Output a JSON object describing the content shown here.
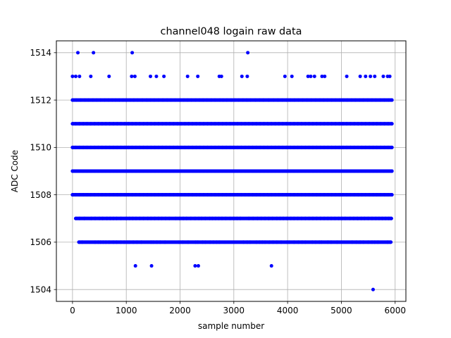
{
  "chart_data": {
    "type": "scatter",
    "title": "channel048 logain raw data",
    "xlabel": "sample number",
    "ylabel": "ADC Code",
    "xlim": [
      -300,
      6200
    ],
    "ylim": [
      1503.5,
      1514.5
    ],
    "x_ticks": [
      0,
      1000,
      2000,
      3000,
      4000,
      5000,
      6000
    ],
    "x_tick_labels": [
      "0",
      "1000",
      "2000",
      "3000",
      "4000",
      "5000",
      "6000"
    ],
    "y_ticks": [
      1504,
      1506,
      1508,
      1510,
      1512,
      1514
    ],
    "y_tick_labels": [
      "1504",
      "1506",
      "1508",
      "1510",
      "1512",
      "1514"
    ],
    "grid": true,
    "legend": "none",
    "marker_color": "#0000ff",
    "x_range_of_samples": [
      0,
      5940
    ],
    "series": [
      {
        "levels": [
          {
            "y": 1504,
            "x": [
              5590
            ]
          },
          {
            "y": 1505,
            "x": [
              1170,
              1470,
              2280,
              2340,
              3700
            ]
          },
          {
            "y": 1506,
            "x": [
              120,
              180,
              420,
              480,
              520,
              570,
              620,
              680,
              760,
              820,
              900,
              960,
              1030,
              1060,
              1130,
              1200,
              1280,
              1460,
              1500,
              1570,
              1630,
              1720,
              1980,
              2050,
              2150,
              2290,
              2330,
              2420,
              2470,
              2560,
              2620,
              2680,
              2730,
              3180,
              3250,
              3300,
              3420,
              3480,
              3530,
              3580,
              3660,
              3730,
              3800,
              3880,
              3990,
              4030,
              4120,
              4200,
              4270,
              4330,
              4460,
              4520,
              4590,
              4630,
              4750,
              4810,
              4920,
              5200,
              5280,
              5350,
              5410,
              5500,
              5570,
              5620,
              5680,
              5860,
              5920
            ]
          },
          {
            "y": 1507,
            "x": [
              60,
              130,
              220,
              350,
              420,
              500,
              560,
              640,
              700,
              760,
              820,
              900,
              1000,
              1060,
              1120,
              1180,
              1250,
              1320,
              1400,
              1460,
              1530,
              1600,
              1660,
              1730,
              1800,
              1920,
              1990,
              2060,
              2120,
              2200,
              2280,
              2350,
              2400,
              2470,
              2550,
              2600,
              2660,
              2720,
              2780,
              2850,
              2930,
              3000,
              3060,
              3120,
              3280,
              3360,
              3440,
              3510,
              3580,
              3650,
              3720,
              3800,
              3860,
              3920,
              3990,
              4060,
              4120,
              4190,
              4260,
              4330,
              4400,
              4470,
              4540,
              4610,
              4680,
              4750,
              4810,
              4880,
              4950,
              5010,
              5070,
              5160,
              5230,
              5300,
              5370,
              5430,
              5500,
              5570,
              5640,
              5700,
              5760,
              5820,
              5880,
              5930
            ]
          },
          {
            "y": 1508,
            "x": [
              0,
              60,
              130,
              200,
              270,
              340,
              410,
              480,
              550,
              620,
              690,
              760,
              830,
              900,
              970,
              1040,
              1110,
              1180,
              1250,
              1320,
              1390,
              1460,
              1530,
              1600,
              1670,
              1740,
              1810,
              1880,
              1950,
              2020,
              2090,
              2160,
              2230,
              2300,
              2370,
              2440,
              2510,
              2580,
              2650,
              2720,
              2790,
              2860,
              2930,
              3000,
              3070,
              3140,
              3210,
              3280,
              3350,
              3420,
              3490,
              3560,
              3630,
              3700,
              3770,
              3840,
              3910,
              3980,
              4050,
              4120,
              4190,
              4260,
              4330,
              4400,
              4470,
              4540,
              4610,
              4680,
              4750,
              4820,
              4890,
              4960,
              5030,
              5100,
              5170,
              5240,
              5310,
              5380,
              5450,
              5520,
              5590,
              5660,
              5730,
              5800,
              5870,
              5940
            ]
          },
          {
            "y": 1509,
            "x": [
              0,
              60,
              130,
              200,
              270,
              340,
              410,
              480,
              550,
              620,
              690,
              760,
              830,
              900,
              970,
              1040,
              1110,
              1180,
              1250,
              1320,
              1390,
              1460,
              1530,
              1600,
              1670,
              1740,
              1810,
              1880,
              1950,
              2020,
              2090,
              2160,
              2230,
              2300,
              2370,
              2440,
              2510,
              2580,
              2650,
              2720,
              2790,
              2860,
              2930,
              3000,
              3070,
              3140,
              3210,
              3280,
              3350,
              3420,
              3490,
              3560,
              3630,
              3700,
              3770,
              3840,
              3910,
              3980,
              4050,
              4120,
              4190,
              4260,
              4330,
              4400,
              4470,
              4540,
              4610,
              4680,
              4750,
              4820,
              4890,
              4960,
              5030,
              5100,
              5170,
              5240,
              5310,
              5380,
              5450,
              5520,
              5590,
              5660,
              5730,
              5800,
              5870,
              5940
            ]
          },
          {
            "y": 1510,
            "x": [
              0,
              60,
              130,
              200,
              270,
              340,
              410,
              480,
              550,
              620,
              690,
              760,
              830,
              900,
              970,
              1040,
              1110,
              1180,
              1250,
              1320,
              1390,
              1460,
              1530,
              1600,
              1670,
              1740,
              1810,
              1880,
              1950,
              2020,
              2090,
              2160,
              2230,
              2300,
              2370,
              2440,
              2510,
              2580,
              2650,
              2720,
              2790,
              2860,
              2930,
              3000,
              3070,
              3140,
              3210,
              3280,
              3350,
              3420,
              3490,
              3560,
              3630,
              3700,
              3770,
              3840,
              3910,
              3980,
              4050,
              4120,
              4190,
              4260,
              4330,
              4400,
              4470,
              4540,
              4610,
              4680,
              4750,
              4820,
              4890,
              4960,
              5030,
              5100,
              5170,
              5240,
              5310,
              5380,
              5450,
              5520,
              5590,
              5660,
              5730,
              5800,
              5870,
              5940
            ]
          },
          {
            "y": 1511,
            "x": [
              0,
              60,
              130,
              200,
              270,
              340,
              410,
              480,
              550,
              620,
              690,
              760,
              830,
              900,
              970,
              1040,
              1110,
              1180,
              1250,
              1320,
              1390,
              1460,
              1530,
              1600,
              1670,
              1740,
              1810,
              1880,
              1950,
              2020,
              2090,
              2160,
              2230,
              2300,
              2370,
              2440,
              2510,
              2580,
              2650,
              2720,
              2790,
              2860,
              2930,
              3000,
              3070,
              3140,
              3210,
              3280,
              3350,
              3420,
              3490,
              3560,
              3630,
              3700,
              3770,
              3840,
              3910,
              3980,
              4050,
              4120,
              4190,
              4260,
              4330,
              4400,
              4470,
              4540,
              4610,
              4680,
              4750,
              4820,
              4890,
              4960,
              5030,
              5100,
              5170,
              5240,
              5310,
              5380,
              5450,
              5520,
              5590,
              5660,
              5730,
              5800,
              5870,
              5940
            ]
          },
          {
            "y": 1512,
            "x": [
              0,
              70,
              150,
              230,
              300,
              380,
              450,
              520,
              600,
              670,
              740,
              800,
              870,
              940,
              1000,
              1070,
              1140,
              1210,
              1300,
              1380,
              1450,
              1520,
              1600,
              1680,
              1760,
              1830,
              1910,
              2000,
              2070,
              2140,
              2210,
              2290,
              2360,
              2430,
              2500,
              2580,
              2650,
              2740,
              2800,
              2870,
              2950,
              3020,
              3090,
              3170,
              3240,
              3310,
              3400,
              3480,
              3550,
              3650,
              3740,
              3820,
              3900,
              3980,
              4050,
              4130,
              4200,
              4280,
              4360,
              4440,
              4520,
              4600,
              4670,
              4740,
              4820,
              4890,
              4970,
              5040,
              5110,
              5190,
              5260,
              5340,
              5410,
              5490,
              5570,
              5640,
              5720,
              5800,
              5880,
              5940
            ]
          },
          {
            "y": 1513,
            "x": [
              0,
              60,
              130,
              340,
              680,
              1100,
              1160,
              1450,
              1560,
              1700,
              2140,
              2330,
              2730,
              2770,
              3150,
              3250,
              3950,
              4080,
              4380,
              4430,
              4500,
              4640,
              4690,
              5100,
              5350,
              5450,
              5540,
              5620,
              5780,
              5860,
              5900
            ]
          },
          {
            "y": 1514,
            "x": [
              100,
              390,
              1110,
              3260
            ]
          }
        ]
      }
    ]
  }
}
